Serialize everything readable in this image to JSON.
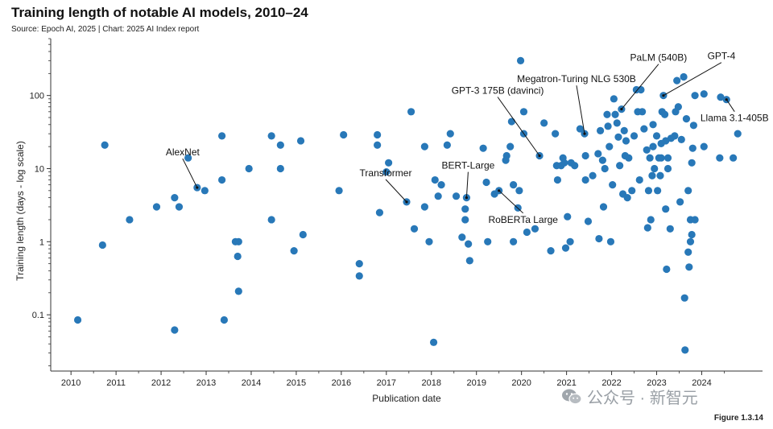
{
  "header": {
    "title": "Training length of notable AI models, 2010–24",
    "subtitle": "Source: Epoch AI, 2025 | Chart: 2025 AI Index report"
  },
  "footer": {
    "figure_label": "Figure 1.3.14",
    "watermark_text": "公众号 · 新智元",
    "watermark_icon": "wechat-icon"
  },
  "colors": {
    "point": "#2878b8",
    "axis": "#333333",
    "text": "#111111"
  },
  "chart_data": {
    "type": "scatter",
    "xlabel": "Publication date",
    "ylabel": "Training length (days - log scale)",
    "y_scale": "log",
    "xlim": [
      2009.55,
      2025.35
    ],
    "ylim": [
      0.017,
      600
    ],
    "x_ticks": [
      2010,
      2011,
      2012,
      2013,
      2014,
      2015,
      2016,
      2017,
      2018,
      2019,
      2020,
      2021,
      2022,
      2023,
      2024
    ],
    "y_ticks": [
      {
        "value": 0.1,
        "label": "0.1"
      },
      {
        "value": 1,
        "label": "1"
      },
      {
        "value": 10,
        "label": "10"
      },
      {
        "value": 100,
        "label": "100"
      }
    ],
    "grid": false,
    "points": [
      {
        "x": 2010.15,
        "y": 0.085
      },
      {
        "x": 2010.7,
        "y": 0.9
      },
      {
        "x": 2010.75,
        "y": 21
      },
      {
        "x": 2011.3,
        "y": 2
      },
      {
        "x": 2011.9,
        "y": 3
      },
      {
        "x": 2012.3,
        "y": 0.062
      },
      {
        "x": 2012.3,
        "y": 4
      },
      {
        "x": 2012.4,
        "y": 3
      },
      {
        "x": 2012.6,
        "y": 14
      },
      {
        "x": 2012.8,
        "y": 5.5
      },
      {
        "x": 2012.97,
        "y": 5
      },
      {
        "x": 2013.35,
        "y": 28
      },
      {
        "x": 2013.35,
        "y": 7
      },
      {
        "x": 2013.4,
        "y": 0.085
      },
      {
        "x": 2013.65,
        "y": 1
      },
      {
        "x": 2013.72,
        "y": 1
      },
      {
        "x": 2013.7,
        "y": 0.63
      },
      {
        "x": 2013.72,
        "y": 0.21
      },
      {
        "x": 2013.95,
        "y": 10
      },
      {
        "x": 2014.45,
        "y": 28
      },
      {
        "x": 2014.45,
        "y": 2
      },
      {
        "x": 2014.65,
        "y": 21
      },
      {
        "x": 2014.65,
        "y": 10
      },
      {
        "x": 2014.95,
        "y": 0.75
      },
      {
        "x": 2015.1,
        "y": 24
      },
      {
        "x": 2015.15,
        "y": 1.25
      },
      {
        "x": 2015.95,
        "y": 5
      },
      {
        "x": 2016.05,
        "y": 29
      },
      {
        "x": 2016.4,
        "y": 0.5
      },
      {
        "x": 2016.4,
        "y": 0.34
      },
      {
        "x": 2016.8,
        "y": 29
      },
      {
        "x": 2016.8,
        "y": 21
      },
      {
        "x": 2016.85,
        "y": 2.5
      },
      {
        "x": 2017.0,
        "y": 9
      },
      {
        "x": 2017.05,
        "y": 12
      },
      {
        "x": 2017.45,
        "y": 3.5
      },
      {
        "x": 2017.55,
        "y": 60
      },
      {
        "x": 2017.62,
        "y": 1.5
      },
      {
        "x": 2017.85,
        "y": 20
      },
      {
        "x": 2017.85,
        "y": 3
      },
      {
        "x": 2017.95,
        "y": 1
      },
      {
        "x": 2018.05,
        "y": 0.042
      },
      {
        "x": 2018.08,
        "y": 7
      },
      {
        "x": 2018.15,
        "y": 4.2
      },
      {
        "x": 2018.22,
        "y": 6
      },
      {
        "x": 2018.35,
        "y": 21
      },
      {
        "x": 2018.42,
        "y": 30
      },
      {
        "x": 2018.55,
        "y": 4.2
      },
      {
        "x": 2018.68,
        "y": 1.15
      },
      {
        "x": 2018.75,
        "y": 2.8
      },
      {
        "x": 2018.75,
        "y": 2
      },
      {
        "x": 2018.78,
        "y": 4
      },
      {
        "x": 2018.82,
        "y": 0.93
      },
      {
        "x": 2018.85,
        "y": 0.55
      },
      {
        "x": 2019.15,
        "y": 19
      },
      {
        "x": 2019.22,
        "y": 6.5
      },
      {
        "x": 2019.25,
        "y": 1
      },
      {
        "x": 2019.4,
        "y": 4.5
      },
      {
        "x": 2019.5,
        "y": 5
      },
      {
        "x": 2019.65,
        "y": 13
      },
      {
        "x": 2019.67,
        "y": 15
      },
      {
        "x": 2019.75,
        "y": 20
      },
      {
        "x": 2019.78,
        "y": 44
      },
      {
        "x": 2019.82,
        "y": 6
      },
      {
        "x": 2019.82,
        "y": 1
      },
      {
        "x": 2019.92,
        "y": 2.9
      },
      {
        "x": 2019.95,
        "y": 5
      },
      {
        "x": 2019.98,
        "y": 300
      },
      {
        "x": 2020.05,
        "y": 60
      },
      {
        "x": 2020.05,
        "y": 30
      },
      {
        "x": 2020.12,
        "y": 1.35
      },
      {
        "x": 2020.3,
        "y": 1.5
      },
      {
        "x": 2020.4,
        "y": 15
      },
      {
        "x": 2020.5,
        "y": 42
      },
      {
        "x": 2020.65,
        "y": 0.75
      },
      {
        "x": 2020.75,
        "y": 30
      },
      {
        "x": 2020.78,
        "y": 11
      },
      {
        "x": 2020.8,
        "y": 7
      },
      {
        "x": 2020.88,
        "y": 11
      },
      {
        "x": 2020.92,
        "y": 14
      },
      {
        "x": 2020.95,
        "y": 12
      },
      {
        "x": 2020.98,
        "y": 0.82
      },
      {
        "x": 2021.02,
        "y": 2.2
      },
      {
        "x": 2021.08,
        "y": 1
      },
      {
        "x": 2021.1,
        "y": 12
      },
      {
        "x": 2021.18,
        "y": 11
      },
      {
        "x": 2021.3,
        "y": 35
      },
      {
        "x": 2021.4,
        "y": 30
      },
      {
        "x": 2021.42,
        "y": 7
      },
      {
        "x": 2021.42,
        "y": 15
      },
      {
        "x": 2021.48,
        "y": 1.9
      },
      {
        "x": 2021.58,
        "y": 8
      },
      {
        "x": 2021.7,
        "y": 16
      },
      {
        "x": 2021.72,
        "y": 1.1
      },
      {
        "x": 2021.75,
        "y": 33
      },
      {
        "x": 2021.8,
        "y": 13
      },
      {
        "x": 2021.82,
        "y": 3
      },
      {
        "x": 2021.85,
        "y": 10
      },
      {
        "x": 2021.9,
        "y": 55
      },
      {
        "x": 2021.92,
        "y": 38
      },
      {
        "x": 2021.95,
        "y": 20
      },
      {
        "x": 2021.98,
        "y": 1
      },
      {
        "x": 2022.02,
        "y": 6
      },
      {
        "x": 2022.05,
        "y": 90
      },
      {
        "x": 2022.08,
        "y": 55
      },
      {
        "x": 2022.12,
        "y": 42
      },
      {
        "x": 2022.15,
        "y": 27
      },
      {
        "x": 2022.18,
        "y": 11
      },
      {
        "x": 2022.22,
        "y": 65
      },
      {
        "x": 2022.25,
        "y": 4.5
      },
      {
        "x": 2022.28,
        "y": 33
      },
      {
        "x": 2022.3,
        "y": 15
      },
      {
        "x": 2022.32,
        "y": 24
      },
      {
        "x": 2022.35,
        "y": 4
      },
      {
        "x": 2022.38,
        "y": 14
      },
      {
        "x": 2022.45,
        "y": 5
      },
      {
        "x": 2022.5,
        "y": 28
      },
      {
        "x": 2022.55,
        "y": 120
      },
      {
        "x": 2022.58,
        "y": 60
      },
      {
        "x": 2022.62,
        "y": 7
      },
      {
        "x": 2022.65,
        "y": 120
      },
      {
        "x": 2022.68,
        "y": 60
      },
      {
        "x": 2022.72,
        "y": 35
      },
      {
        "x": 2022.78,
        "y": 18
      },
      {
        "x": 2022.8,
        "y": 1.55
      },
      {
        "x": 2022.82,
        "y": 5
      },
      {
        "x": 2022.85,
        "y": 14
      },
      {
        "x": 2022.87,
        "y": 2
      },
      {
        "x": 2022.9,
        "y": 8
      },
      {
        "x": 2022.92,
        "y": 40
      },
      {
        "x": 2022.92,
        "y": 20
      },
      {
        "x": 2022.95,
        "y": 10
      },
      {
        "x": 2023.0,
        "y": 28
      },
      {
        "x": 2023.02,
        "y": 5
      },
      {
        "x": 2023.05,
        "y": 14
      },
      {
        "x": 2023.08,
        "y": 8
      },
      {
        "x": 2023.1,
        "y": 14
      },
      {
        "x": 2023.1,
        "y": 22
      },
      {
        "x": 2023.12,
        "y": 60
      },
      {
        "x": 2023.15,
        "y": 100
      },
      {
        "x": 2023.18,
        "y": 55
      },
      {
        "x": 2023.2,
        "y": 24
      },
      {
        "x": 2023.2,
        "y": 2.8
      },
      {
        "x": 2023.22,
        "y": 0.42
      },
      {
        "x": 2023.25,
        "y": 14
      },
      {
        "x": 2023.25,
        "y": 10
      },
      {
        "x": 2023.3,
        "y": 1.5
      },
      {
        "x": 2023.32,
        "y": 26
      },
      {
        "x": 2023.4,
        "y": 28
      },
      {
        "x": 2023.42,
        "y": 60
      },
      {
        "x": 2023.45,
        "y": 160
      },
      {
        "x": 2023.48,
        "y": 70
      },
      {
        "x": 2023.52,
        "y": 3.5
      },
      {
        "x": 2023.55,
        "y": 25
      },
      {
        "x": 2023.6,
        "y": 180
      },
      {
        "x": 2023.62,
        "y": 0.17
      },
      {
        "x": 2023.63,
        "y": 0.033
      },
      {
        "x": 2023.66,
        "y": 48
      },
      {
        "x": 2023.7,
        "y": 5
      },
      {
        "x": 2023.7,
        "y": 0.72
      },
      {
        "x": 2023.72,
        "y": 0.45
      },
      {
        "x": 2023.75,
        "y": 1
      },
      {
        "x": 2023.75,
        "y": 2
      },
      {
        "x": 2023.78,
        "y": 1.25
      },
      {
        "x": 2023.78,
        "y": 12
      },
      {
        "x": 2023.8,
        "y": 19
      },
      {
        "x": 2023.82,
        "y": 39
      },
      {
        "x": 2023.85,
        "y": 100
      },
      {
        "x": 2023.85,
        "y": 2
      },
      {
        "x": 2024.05,
        "y": 105
      },
      {
        "x": 2024.05,
        "y": 20
      },
      {
        "x": 2024.4,
        "y": 14
      },
      {
        "x": 2024.42,
        "y": 95
      },
      {
        "x": 2024.55,
        "y": 88
      },
      {
        "x": 2024.7,
        "y": 14
      },
      {
        "x": 2024.8,
        "y": 30
      }
    ],
    "annotations": [
      {
        "text": "AlexNet",
        "x": 2012.8,
        "y": 5.5
      },
      {
        "text": "Transformer",
        "x": 2017.45,
        "y": 3.5
      },
      {
        "text": "BERT-Large",
        "x": 2018.78,
        "y": 4
      },
      {
        "text": "RoBERTa Large",
        "x": 2019.5,
        "y": 5
      },
      {
        "text": "GPT-3 175B (davinci)",
        "x": 2020.4,
        "y": 15
      },
      {
        "text": "Megatron-Turing NLG 530B",
        "x": 2021.4,
        "y": 30
      },
      {
        "text": "PaLM (540B)",
        "x": 2022.22,
        "y": 65
      },
      {
        "text": "GPT-4",
        "x": 2023.15,
        "y": 100
      },
      {
        "text": "Llama 3.1-405B",
        "x": 2024.55,
        "y": 88
      }
    ]
  }
}
